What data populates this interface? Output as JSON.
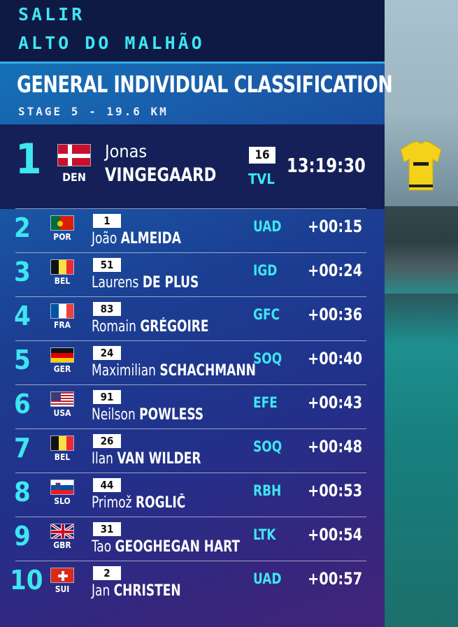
{
  "header": {
    "location_1": "SALIR",
    "location_2": "ALTO DO MALHÃO",
    "title": "GENERAL INDIVIDUAL CLASSIFICATION",
    "subtitle": "STAGE 5 - 19.6 KM"
  },
  "leader": {
    "rank": "1",
    "nationality": "DEN",
    "first_name": "Jonas",
    "last_name": "VINGEGAARD",
    "bib": "16",
    "team": "TVL",
    "time": "13:19:30"
  },
  "rows": [
    {
      "rank": "2",
      "nationality": "POR",
      "bib": "1",
      "first_name": "João",
      "last_name": "ALMEIDA",
      "team": "UAD",
      "gap": "+00:15"
    },
    {
      "rank": "3",
      "nationality": "BEL",
      "bib": "51",
      "first_name": "Laurens",
      "last_name": "DE PLUS",
      "team": "IGD",
      "gap": "+00:24"
    },
    {
      "rank": "4",
      "nationality": "FRA",
      "bib": "83",
      "first_name": "Romain",
      "last_name": "GRÉGOIRE",
      "team": "GFC",
      "gap": "+00:36"
    },
    {
      "rank": "5",
      "nationality": "GER",
      "bib": "24",
      "first_name": "Maximilian",
      "last_name": "SCHACHMANN",
      "team": "SOQ",
      "gap": "+00:40"
    },
    {
      "rank": "6",
      "nationality": "USA",
      "bib": "91",
      "first_name": "Neilson",
      "last_name": "POWLESS",
      "team": "EFE",
      "gap": "+00:43"
    },
    {
      "rank": "7",
      "nationality": "BEL",
      "bib": "26",
      "first_name": "Ilan",
      "last_name": "VAN WILDER",
      "team": "SOQ",
      "gap": "+00:48"
    },
    {
      "rank": "8",
      "nationality": "SLO",
      "bib": "44",
      "first_name": "Primož",
      "last_name": "ROGLIČ",
      "team": "RBH",
      "gap": "+00:53"
    },
    {
      "rank": "9",
      "nationality": "GBR",
      "bib": "31",
      "first_name": "Tao",
      "last_name": "GEOGHEGAN HART",
      "team": "LTK",
      "gap": "+00:54"
    },
    {
      "rank": "10",
      "nationality": "SUI",
      "bib": "2",
      "first_name": "Jan",
      "last_name": "CHRISTEN",
      "team": "UAD",
      "gap": "+00:57"
    }
  ],
  "colors": {
    "accent": "#3ee6f0",
    "header_bg": "#0f1a44",
    "leader_bg": "#142057",
    "jersey": "#f4d21a"
  },
  "icons": {
    "leader_jersey": "yellow-jersey-icon"
  }
}
